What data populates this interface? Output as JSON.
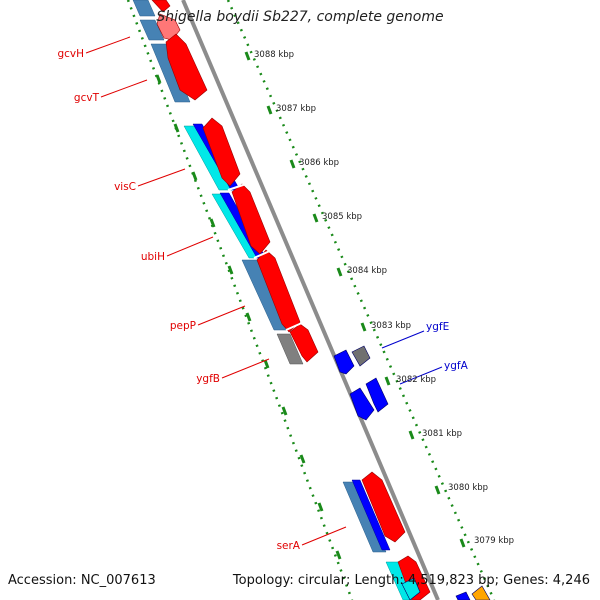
{
  "title": "Shigella boydii Sb227, complete genome",
  "footer": {
    "accession": "Accession: NC_007613",
    "topology": "Topology: circular; Length: 4,519,823 bp; Genes: 4,246"
  },
  "scale": {
    "unit": "kbp",
    "ticks": [
      "3088 kbp",
      "3087 kbp",
      "3086 kbp",
      "3085 kbp",
      "3084 kbp",
      "3083 kbp",
      "3082 kbp",
      "3081 kbp",
      "3080 kbp",
      "3079 kbp"
    ]
  },
  "colors": {
    "backbone": "#8c8c8c",
    "forward_gene": "#ff0000",
    "reverse_gene": "#0000ff",
    "cog_steelblue": "#4682b4",
    "cog_cyan": "#00ffff",
    "cog_gray": "#808080",
    "cog_orange": "#ffa500",
    "dots": "#1a8a1a",
    "label_red": "#e00000",
    "label_blue": "#0000cc"
  },
  "gene_labels_left": [
    "gcvH",
    "gcvT",
    "visC",
    "ubiH",
    "pepP",
    "ygfB",
    "serA"
  ],
  "gene_labels_right": [
    "ygfE",
    "ygfA"
  ]
}
